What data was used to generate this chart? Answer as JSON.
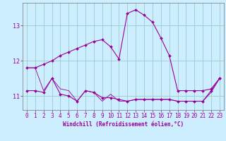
{
  "xlabel": "Windchill (Refroidissement éolien,°C)",
  "background_color": "#cceeff",
  "grid_color": "#99cccc",
  "line_color": "#990099",
  "x_values": [
    0,
    1,
    2,
    3,
    4,
    5,
    6,
    7,
    8,
    9,
    10,
    11,
    12,
    13,
    14,
    15,
    16,
    17,
    18,
    19,
    20,
    21,
    22,
    23
  ],
  "series1": [
    11.8,
    11.8,
    11.9,
    12.0,
    12.15,
    12.25,
    12.35,
    12.45,
    12.55,
    12.6,
    12.4,
    12.05,
    13.35,
    13.45,
    13.3,
    13.1,
    12.65,
    12.15,
    11.15,
    11.15,
    11.15,
    11.15,
    11.2,
    11.5
  ],
  "series2": [
    11.15,
    11.15,
    11.1,
    11.5,
    11.05,
    11.0,
    10.85,
    11.15,
    11.1,
    10.95,
    10.95,
    10.9,
    10.85,
    10.9,
    10.9,
    10.9,
    10.9,
    10.9,
    10.85,
    10.85,
    10.85,
    10.85,
    11.15,
    11.5
  ],
  "series3": [
    11.8,
    11.8,
    11.15,
    11.5,
    11.2,
    11.15,
    10.85,
    11.15,
    11.1,
    10.85,
    11.05,
    10.85,
    10.85,
    10.9,
    10.9,
    10.9,
    10.9,
    10.9,
    10.85,
    10.85,
    10.85,
    10.85,
    11.1,
    11.5
  ],
  "ylim": [
    10.6,
    13.65
  ],
  "xlim": [
    -0.5,
    23.5
  ],
  "yticks": [
    11,
    12,
    13
  ],
  "xticks": [
    0,
    1,
    2,
    3,
    4,
    5,
    6,
    7,
    8,
    9,
    10,
    11,
    12,
    13,
    14,
    15,
    16,
    17,
    18,
    19,
    20,
    21,
    22,
    23
  ],
  "xlabel_fontsize": 5.5,
  "tick_fontsize": 5.5,
  "marker_size": 2.0,
  "line_width": 0.8
}
